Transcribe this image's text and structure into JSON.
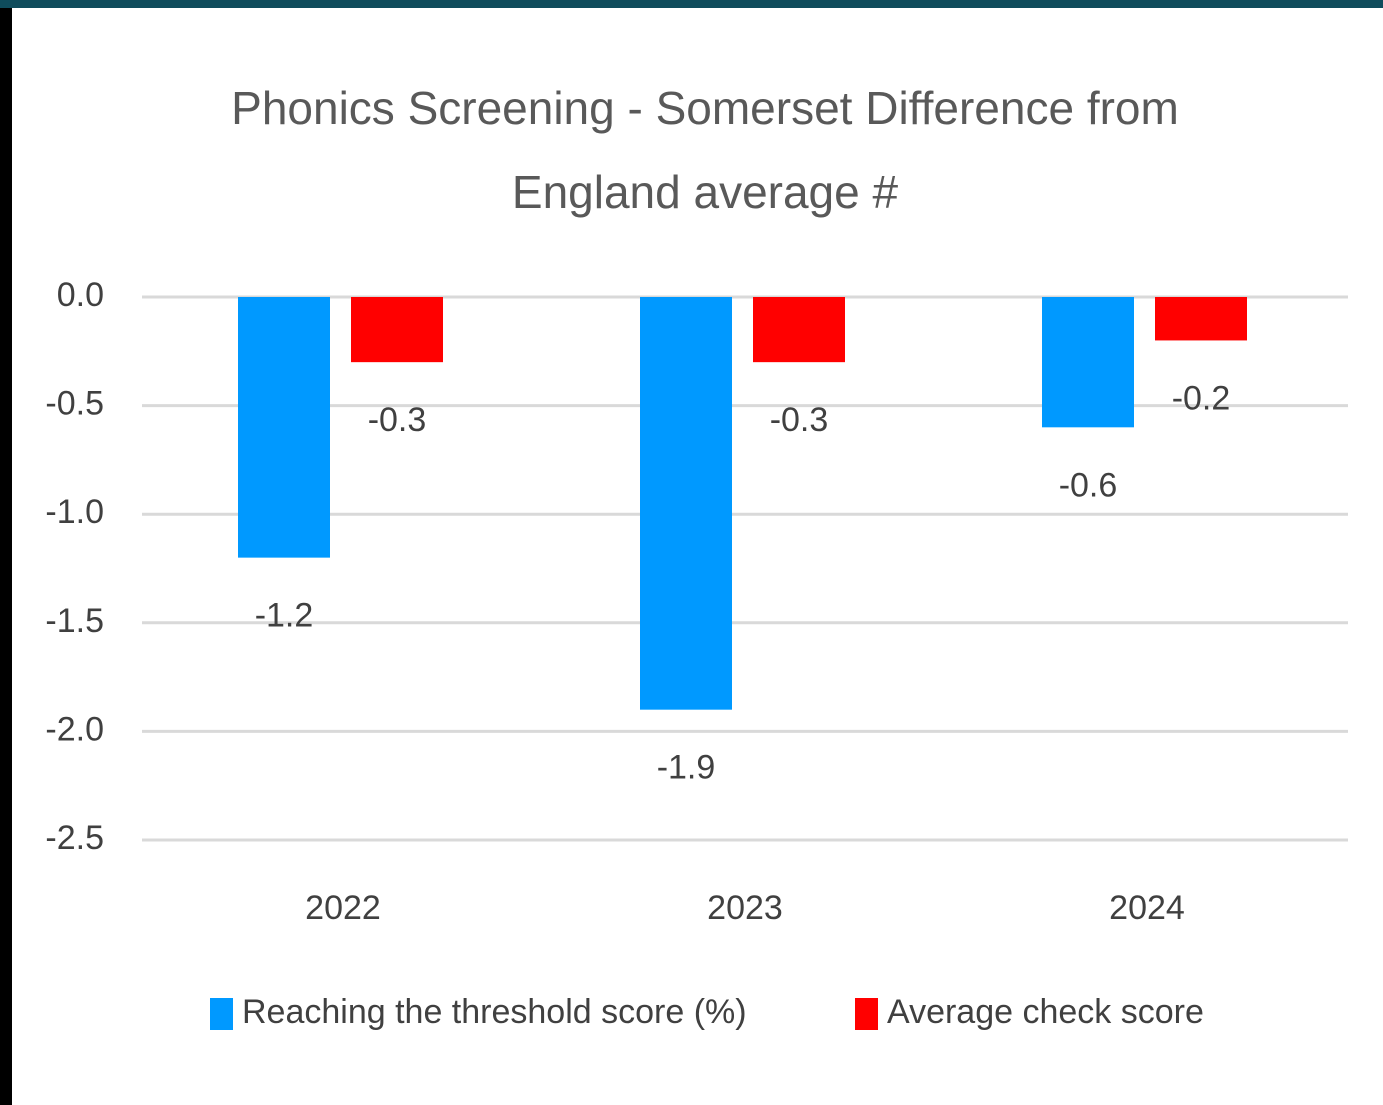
{
  "chart_data": {
    "type": "bar",
    "title": "Phonics Screening - Somerset Difference from England average #",
    "categories": [
      "2022",
      "2023",
      "2024"
    ],
    "series": [
      {
        "name": "Reaching the threshold score (%)",
        "color": "#0099ff",
        "values": [
          -1.2,
          -1.9,
          -0.6
        ]
      },
      {
        "name": "Average check score",
        "color": "#ff0000",
        "values": [
          -0.3,
          -0.3,
          -0.2
        ]
      }
    ],
    "ylim": [
      -2.5,
      0
    ],
    "yticks": [
      {
        "value": 0,
        "label": "0.0"
      },
      {
        "value": -0.5,
        "label": "-0.5"
      },
      {
        "value": -1,
        "label": "-1.0"
      },
      {
        "value": -1.5,
        "label": "-1.5"
      },
      {
        "value": -2,
        "label": "-2.0"
      },
      {
        "value": -2.5,
        "label": "-2.5"
      }
    ],
    "grid": true,
    "legend": "bottom"
  }
}
